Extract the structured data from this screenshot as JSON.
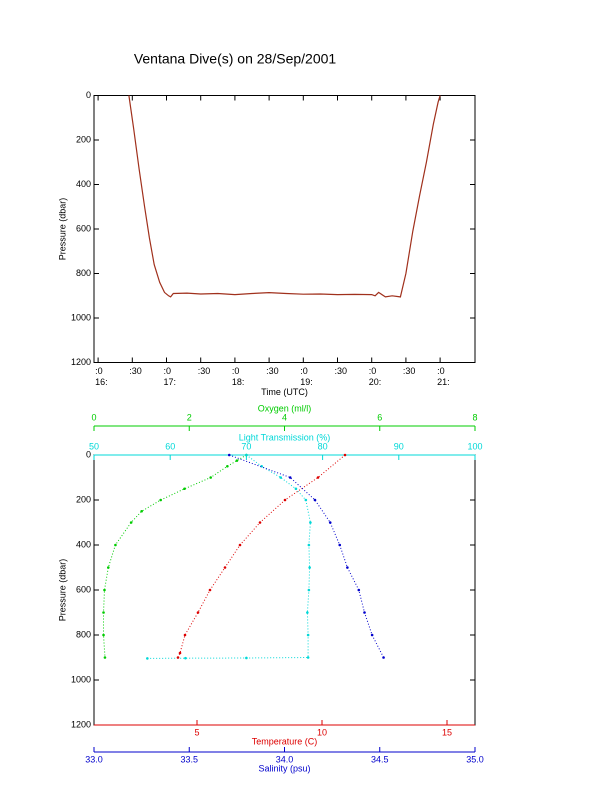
{
  "chart_data": [
    {
      "type": "line",
      "title": "Ventana Dive(s) on 28/Sep/2001",
      "x_label": "Time (UTC)",
      "y_label": "Pressure (dbar)",
      "color": "#a0301c",
      "x": [
        16.45,
        16.52,
        16.6,
        16.68,
        16.75,
        16.82,
        16.9,
        16.97,
        17.03,
        17.06,
        17.1,
        17.3,
        17.5,
        17.75,
        18.0,
        18.25,
        18.5,
        18.75,
        19.0,
        19.25,
        19.5,
        19.75,
        20.0,
        20.05,
        20.1,
        20.2,
        20.3,
        20.42,
        20.5,
        20.6,
        20.7,
        20.8,
        20.9,
        20.97,
        21.0
      ],
      "values": [
        0,
        150,
        330,
        500,
        640,
        760,
        840,
        885,
        900,
        905,
        890,
        888,
        892,
        890,
        895,
        890,
        886,
        890,
        893,
        892,
        895,
        894,
        895,
        900,
        885,
        905,
        900,
        905,
        800,
        610,
        450,
        300,
        130,
        30,
        0
      ],
      "xlim": [
        15.94,
        21.51
      ],
      "xticks": [
        {
          "value": 16,
          "label": [
            ":0",
            "16:"
          ]
        },
        {
          "value": 16.5,
          "label": [
            ":30"
          ]
        },
        {
          "value": 17,
          "label": [
            ":0",
            "17:"
          ]
        },
        {
          "value": 17.5,
          "label": [
            ":30"
          ]
        },
        {
          "value": 18,
          "label": [
            ":0",
            "18:"
          ]
        },
        {
          "value": 18.5,
          "label": [
            ":30"
          ]
        },
        {
          "value": 19,
          "label": [
            ":0",
            "19:"
          ]
        },
        {
          "value": 19.5,
          "label": [
            ":30"
          ]
        },
        {
          "value": 20,
          "label": [
            ":0",
            "20:"
          ]
        },
        {
          "value": 20.5,
          "label": [
            ":30"
          ]
        },
        {
          "value": 21,
          "label": [
            ":0",
            "21:"
          ]
        }
      ],
      "ylim": [
        1200,
        0
      ],
      "yticks": [
        0,
        200,
        400,
        600,
        800,
        1000,
        1200
      ]
    },
    {
      "type": "profile",
      "y_label": "Pressure (dbar)",
      "ylim": [
        1200,
        0
      ],
      "yticks": [
        0,
        200,
        400,
        600,
        800,
        1000,
        1200
      ],
      "x_axes": [
        {
          "label": "Oxygen (ml/l)",
          "color": "#00cc00",
          "position": "top",
          "xlim": [
            0,
            8
          ],
          "xticks": [
            0,
            2,
            4,
            6,
            8
          ]
        },
        {
          "label": "Light Transmission (%)",
          "color": "#00d8d8",
          "position": "top",
          "xlim": [
            50,
            100
          ],
          "xticks": [
            50,
            60,
            70,
            80,
            90,
            100
          ]
        },
        {
          "label": "Temperature (C)",
          "color": "#dd0000",
          "position": "bottom",
          "xlim": [
            0.88,
            16.12
          ],
          "xticks": [
            5,
            10,
            15
          ]
        },
        {
          "label": "Salinity (psu)",
          "color": "#0000cc",
          "position": "bottom",
          "xlim": [
            33,
            35
          ],
          "xticks": [
            {
              "value": 33,
              "label": "33.0"
            },
            {
              "value": 33.5,
              "label": "33.5"
            },
            {
              "value": 34,
              "label": "34.0"
            },
            {
              "value": 34.5,
              "label": "34.5"
            },
            {
              "value": 35,
              "label": "35.0"
            }
          ]
        }
      ],
      "series": [
        {
          "x_axis": 0,
          "color": "#00cc00",
          "x": [
            3.2,
            3.0,
            2.8,
            2.45,
            1.9,
            1.4,
            1.0,
            0.78,
            0.45,
            0.3,
            0.22,
            0.2,
            0.2,
            0.23
          ],
          "values": [
            0,
            25,
            50,
            100,
            150,
            200,
            250,
            300,
            400,
            500,
            600,
            700,
            800,
            900
          ]
        },
        {
          "x_axis": 1,
          "color": "#00d8d8",
          "x": [
            70,
            72,
            74.5,
            76.5,
            77.8,
            78.4,
            78.2,
            78.3,
            78.2,
            78.0,
            78.1,
            78.1,
            70,
            62,
            57
          ],
          "values": [
            0,
            50,
            100,
            150,
            200,
            300,
            400,
            500,
            600,
            700,
            800,
            900,
            902,
            903,
            904
          ]
        },
        {
          "x_axis": 2,
          "color": "#dd0000",
          "x": [
            10.92,
            9.84,
            8.52,
            7.52,
            6.72,
            6.12,
            5.52,
            5.04,
            4.52,
            4.32,
            4.24
          ],
          "values": [
            0,
            100,
            200,
            300,
            400,
            500,
            600,
            700,
            800,
            880,
            900
          ]
        },
        {
          "x_axis": 3,
          "color": "#0000cc",
          "x": [
            33.71,
            34.03,
            34.16,
            34.24,
            34.29,
            34.33,
            34.39,
            34.42,
            34.46,
            34.52
          ],
          "values": [
            0,
            100,
            200,
            300,
            400,
            500,
            600,
            700,
            800,
            900
          ]
        }
      ]
    }
  ]
}
